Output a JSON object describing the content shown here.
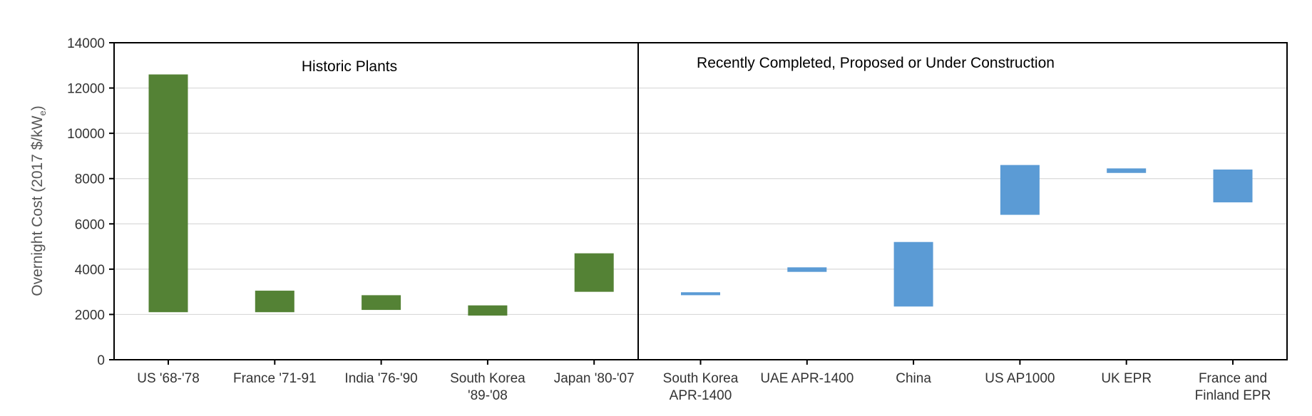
{
  "chart_data": {
    "type": "bar",
    "subtype": "floating-range",
    "title": "",
    "xlabel": "",
    "ylabel_main": "Overnight Cost (2017 $/kW",
    "ylabel_sub": "e",
    "ylabel_close": ")",
    "ylim": [
      0,
      14000
    ],
    "yticks": [
      0,
      2000,
      4000,
      6000,
      8000,
      10000,
      12000,
      14000
    ],
    "ytick_labels": [
      "0",
      "2000",
      "4000",
      "6000",
      "8000",
      "10000",
      "12000",
      "14000"
    ],
    "grid": true,
    "panels": [
      {
        "label": "Historic Plants",
        "color": "#548235"
      },
      {
        "label": "Recently Completed, Proposed or Under Construction",
        "color": "#5b9bd5"
      }
    ],
    "categories": [
      {
        "lines": [
          "US '68-'78"
        ],
        "low": 2100,
        "high": 12600,
        "panel": 0
      },
      {
        "lines": [
          "France '71-91"
        ],
        "low": 2100,
        "high": 3050,
        "panel": 0
      },
      {
        "lines": [
          "India '76-'90"
        ],
        "low": 2200,
        "high": 2850,
        "panel": 0
      },
      {
        "lines": [
          "South Korea",
          "'89-'08"
        ],
        "low": 1950,
        "high": 2400,
        "panel": 0
      },
      {
        "lines": [
          "Japan '80-'07"
        ],
        "low": 3000,
        "high": 4700,
        "panel": 0
      },
      {
        "lines": [
          "South Korea",
          "APR-1400"
        ],
        "low": 2850,
        "high": 2980,
        "panel": 1
      },
      {
        "lines": [
          "UAE APR-1400"
        ],
        "low": 3880,
        "high": 4080,
        "panel": 1
      },
      {
        "lines": [
          "China"
        ],
        "low": 2350,
        "high": 5200,
        "panel": 1
      },
      {
        "lines": [
          "US AP1000"
        ],
        "low": 6400,
        "high": 8600,
        "panel": 1
      },
      {
        "lines": [
          "UK EPR"
        ],
        "low": 8250,
        "high": 8450,
        "panel": 1
      },
      {
        "lines": [
          "France and",
          "Finland EPR"
        ],
        "low": 6950,
        "high": 8400,
        "panel": 1
      }
    ]
  }
}
